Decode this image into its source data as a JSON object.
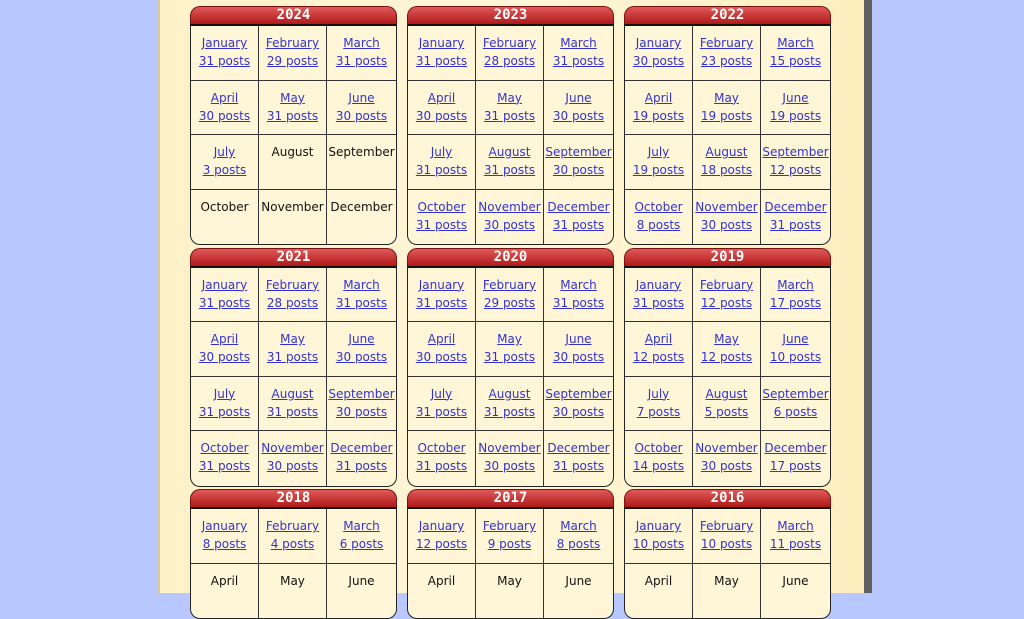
{
  "years": [
    {
      "year": "2024",
      "months": [
        {
          "name": "January",
          "posts": "31 posts"
        },
        {
          "name": "February",
          "posts": "29 posts"
        },
        {
          "name": "March",
          "posts": "31 posts"
        },
        {
          "name": "April",
          "posts": "30 posts"
        },
        {
          "name": "May",
          "posts": "31 posts"
        },
        {
          "name": "June",
          "posts": "30 posts"
        },
        {
          "name": "July",
          "posts": "3 posts"
        },
        {
          "name": "August",
          "posts": ""
        },
        {
          "name": "September",
          "posts": ""
        },
        {
          "name": "October",
          "posts": ""
        },
        {
          "name": "November",
          "posts": ""
        },
        {
          "name": "December",
          "posts": ""
        }
      ]
    },
    {
      "year": "2023",
      "months": [
        {
          "name": "January",
          "posts": "31 posts"
        },
        {
          "name": "February",
          "posts": "28 posts"
        },
        {
          "name": "March",
          "posts": "31 posts"
        },
        {
          "name": "April",
          "posts": "30 posts"
        },
        {
          "name": "May",
          "posts": "31 posts"
        },
        {
          "name": "June",
          "posts": "30 posts"
        },
        {
          "name": "July",
          "posts": "31 posts"
        },
        {
          "name": "August",
          "posts": "31 posts"
        },
        {
          "name": "September",
          "posts": "30 posts"
        },
        {
          "name": "October",
          "posts": "31 posts"
        },
        {
          "name": "November",
          "posts": "30 posts"
        },
        {
          "name": "December",
          "posts": "31 posts"
        }
      ]
    },
    {
      "year": "2022",
      "months": [
        {
          "name": "January",
          "posts": "30 posts"
        },
        {
          "name": "February",
          "posts": "23 posts"
        },
        {
          "name": "March",
          "posts": "15 posts"
        },
        {
          "name": "April",
          "posts": "19 posts"
        },
        {
          "name": "May",
          "posts": "19 posts"
        },
        {
          "name": "June",
          "posts": "19 posts"
        },
        {
          "name": "July",
          "posts": "19 posts"
        },
        {
          "name": "August",
          "posts": "18 posts"
        },
        {
          "name": "September",
          "posts": "12 posts"
        },
        {
          "name": "October",
          "posts": "8 posts"
        },
        {
          "name": "November",
          "posts": "30 posts"
        },
        {
          "name": "December",
          "posts": "31 posts"
        }
      ]
    },
    {
      "year": "2021",
      "months": [
        {
          "name": "January",
          "posts": "31 posts"
        },
        {
          "name": "February",
          "posts": "28 posts"
        },
        {
          "name": "March",
          "posts": "31 posts"
        },
        {
          "name": "April",
          "posts": "30 posts"
        },
        {
          "name": "May",
          "posts": "31 posts"
        },
        {
          "name": "June",
          "posts": "30 posts"
        },
        {
          "name": "July",
          "posts": "31 posts"
        },
        {
          "name": "August",
          "posts": "31 posts"
        },
        {
          "name": "September",
          "posts": "30 posts"
        },
        {
          "name": "October",
          "posts": "31 posts"
        },
        {
          "name": "November",
          "posts": "30 posts"
        },
        {
          "name": "December",
          "posts": "31 posts"
        }
      ]
    },
    {
      "year": "2020",
      "months": [
        {
          "name": "January",
          "posts": "31 posts"
        },
        {
          "name": "February",
          "posts": "29 posts"
        },
        {
          "name": "March",
          "posts": "31 posts"
        },
        {
          "name": "April",
          "posts": "30 posts"
        },
        {
          "name": "May",
          "posts": "31 posts"
        },
        {
          "name": "June",
          "posts": "30 posts"
        },
        {
          "name": "July",
          "posts": "31 posts"
        },
        {
          "name": "August",
          "posts": "31 posts"
        },
        {
          "name": "September",
          "posts": "30 posts"
        },
        {
          "name": "October",
          "posts": "31 posts"
        },
        {
          "name": "November",
          "posts": "30 posts"
        },
        {
          "name": "December",
          "posts": "31 posts"
        }
      ]
    },
    {
      "year": "2019",
      "months": [
        {
          "name": "January",
          "posts": "31 posts"
        },
        {
          "name": "February",
          "posts": "12 posts"
        },
        {
          "name": "March",
          "posts": "17 posts"
        },
        {
          "name": "April",
          "posts": "12 posts"
        },
        {
          "name": "May",
          "posts": "12 posts"
        },
        {
          "name": "June",
          "posts": "10 posts"
        },
        {
          "name": "July",
          "posts": "7 posts"
        },
        {
          "name": "August",
          "posts": "5 posts"
        },
        {
          "name": "September",
          "posts": "6 posts"
        },
        {
          "name": "October",
          "posts": "14 posts"
        },
        {
          "name": "November",
          "posts": "30 posts"
        },
        {
          "name": "December",
          "posts": "17 posts"
        }
      ]
    },
    {
      "year": "2018",
      "months": [
        {
          "name": "January",
          "posts": "8 posts"
        },
        {
          "name": "February",
          "posts": "4 posts"
        },
        {
          "name": "March",
          "posts": "6 posts"
        },
        {
          "name": "April",
          "posts": ""
        },
        {
          "name": "May",
          "posts": ""
        },
        {
          "name": "June",
          "posts": ""
        }
      ]
    },
    {
      "year": "2017",
      "months": [
        {
          "name": "January",
          "posts": "12 posts"
        },
        {
          "name": "February",
          "posts": "9 posts"
        },
        {
          "name": "March",
          "posts": "8 posts"
        },
        {
          "name": "April",
          "posts": ""
        },
        {
          "name": "May",
          "posts": ""
        },
        {
          "name": "June",
          "posts": ""
        }
      ]
    },
    {
      "year": "2016",
      "months": [
        {
          "name": "January",
          "posts": "10 posts"
        },
        {
          "name": "February",
          "posts": "10 posts"
        },
        {
          "name": "March",
          "posts": "11 posts"
        },
        {
          "name": "April",
          "posts": ""
        },
        {
          "name": "May",
          "posts": ""
        },
        {
          "name": "June",
          "posts": ""
        }
      ]
    }
  ],
  "colors": {
    "background": "#b8c8ff",
    "header": "#c02020",
    "link": "#3333cc"
  }
}
